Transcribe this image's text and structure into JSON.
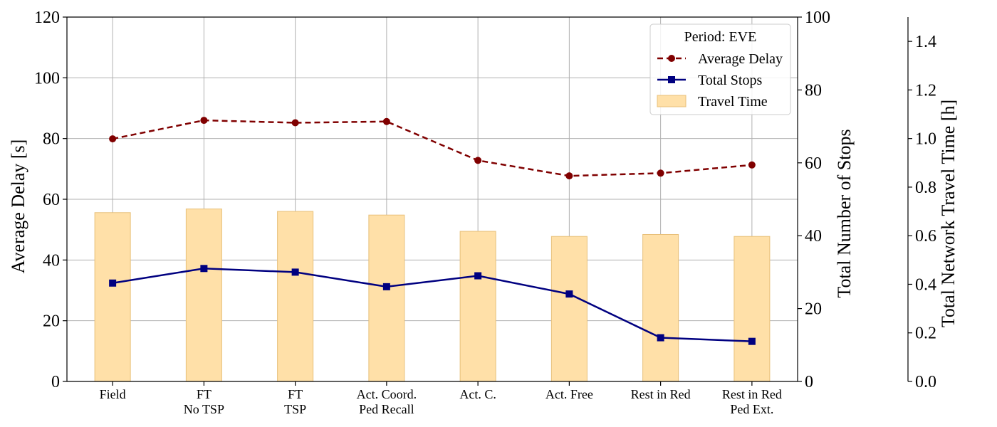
{
  "chart_data": {
    "type": "bar+line",
    "categories": [
      [
        "Field"
      ],
      [
        "FT",
        "No TSP"
      ],
      [
        "FT",
        "TSP"
      ],
      [
        "Act. Coord.",
        "Ped Recall"
      ],
      [
        "Act. C."
      ],
      [
        "Act. Free"
      ],
      [
        "Rest in Red"
      ],
      [
        "Rest in Red",
        "Ped Ext."
      ]
    ],
    "series": [
      {
        "name": "Average Delay",
        "type": "line",
        "axis": "left",
        "color": "#800000",
        "style": "dashed",
        "marker": "circle",
        "values": [
          79.9,
          86.0,
          85.2,
          85.6,
          72.8,
          67.7,
          68.6,
          71.3
        ]
      },
      {
        "name": "Total Stops",
        "type": "line",
        "axis": "right",
        "color": "#000080",
        "style": "solid",
        "marker": "square",
        "values": [
          27.0,
          31.0,
          30.0,
          26.0,
          29.0,
          24.0,
          12.0,
          11.0
        ]
      },
      {
        "name": "Travel Time",
        "type": "bar",
        "axis": "third",
        "color": "#ffe0a8",
        "edge_color": "#e8c07a",
        "values": [
          0.695,
          0.71,
          0.7,
          0.685,
          0.618,
          0.597,
          0.605,
          0.597
        ]
      }
    ],
    "axes": {
      "left": {
        "label": "Average Delay [s]",
        "range": [
          0,
          120
        ],
        "ticks": [
          "0",
          "20",
          "40",
          "60",
          "80",
          "100",
          "120"
        ]
      },
      "right": {
        "label": "Total Number of Stops",
        "range": [
          0,
          100
        ],
        "ticks": [
          "0",
          "20",
          "40",
          "60",
          "80",
          "100"
        ]
      },
      "third": {
        "label": "Total Network Travel Time [h]",
        "range": [
          0,
          1.5
        ],
        "ticks": [
          "0.0",
          "0.2",
          "0.4",
          "0.6",
          "0.8",
          "1.0",
          "1.2",
          "1.4"
        ]
      }
    },
    "legend": {
      "title": "Period: EVE",
      "placement": "top-right"
    },
    "grid": true
  }
}
